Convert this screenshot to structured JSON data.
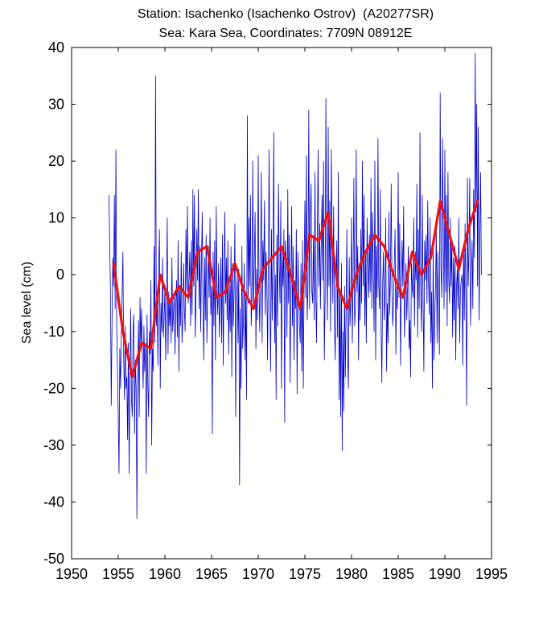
{
  "chart_data": {
    "type": "line",
    "title": "Station: Isachenko (Isachenko Ostrov)  (A20277SR)",
    "subtitle": "Sea: Kara Sea, Coordinates: 7709N 08912E",
    "xlabel": "",
    "ylabel": "Sea level (cm)",
    "xlim": [
      1950,
      1995
    ],
    "ylim": [
      -50,
      40
    ],
    "x_ticks": [
      1950,
      1955,
      1960,
      1965,
      1970,
      1975,
      1980,
      1985,
      1990,
      1995
    ],
    "y_ticks": [
      40,
      30,
      20,
      10,
      0,
      -10,
      -20,
      -30,
      -40,
      -50
    ],
    "grid": false,
    "colors": {
      "monthly": "#0000cc",
      "annual": "#ee1111"
    },
    "series": [
      {
        "key": "monthly",
        "x_start": 1954.0,
        "x_step": 0.0833333,
        "values": [
          14,
          5,
          -3,
          -23,
          -8,
          3,
          -2,
          14,
          -6,
          22,
          -9,
          -17,
          -25,
          -35,
          -13,
          -20,
          -10,
          -3,
          4,
          -15,
          -22,
          -9,
          -20,
          -18,
          -29,
          -12,
          -35,
          -18,
          -6,
          -22,
          -25,
          -10,
          -7,
          -28,
          -15,
          -20,
          -43,
          -17,
          -8,
          -25,
          -4,
          -13,
          -6,
          -14,
          -20,
          -9,
          -17,
          -12,
          -35,
          -7,
          -19,
          -25,
          -10,
          -14,
          -1,
          -30,
          -13,
          -17,
          5,
          -12,
          35,
          -9,
          -3,
          -16,
          1,
          8,
          -20,
          -5,
          -10,
          3,
          -11,
          -8,
          -2,
          -15,
          -6,
          10,
          -14,
          -3,
          -9,
          -4,
          -12,
          3,
          -10,
          -7,
          -3,
          -14,
          -5,
          -1,
          -11,
          6,
          -17,
          -2,
          -9,
          4,
          -12,
          -8,
          2,
          -6,
          -10,
          8,
          -3,
          12,
          -5,
          -1,
          4,
          -9,
          6,
          -7,
          15,
          -2,
          14,
          -11,
          -4,
          8,
          -1,
          15,
          -6,
          5,
          -10,
          2,
          11,
          -6,
          -15,
          3,
          -8,
          7,
          -12,
          -3,
          5,
          -4,
          10,
          -7,
          -2,
          -28,
          4,
          -9,
          6,
          -15,
          12,
          -3,
          -7,
          2,
          -11,
          -5,
          3,
          -12,
          7,
          -16,
          -1,
          11,
          -5,
          3,
          -8,
          6,
          -14,
          -2,
          -10,
          5,
          -18,
          2,
          -9,
          -3,
          9,
          -25,
          -4,
          0,
          -12,
          1,
          -37,
          -6,
          -20,
          5,
          -13,
          -8,
          2,
          -15,
          -4,
          -22,
          28,
          -5,
          10,
          -2,
          14,
          -9,
          -4,
          20,
          -6,
          3,
          11,
          -13,
          1,
          -8,
          21,
          -3,
          -10,
          2,
          18,
          -12,
          6,
          -1,
          13,
          -7,
          4,
          0,
          -15,
          1,
          22,
          -4,
          -17,
          8,
          -8,
          3,
          25,
          -12,
          0,
          -22,
          7,
          -9,
          16,
          2,
          -5,
          13,
          -20,
          4,
          -2,
          8,
          -26,
          6,
          3,
          -11,
          15,
          -5,
          7,
          -19,
          -3,
          12,
          -9,
          5,
          -15,
          -1,
          -6,
          8,
          -21,
          4,
          -3,
          -9,
          -12,
          2,
          -17,
          6,
          -20,
          -1,
          13,
          -4,
          21,
          -8,
          -2,
          29,
          -6,
          10,
          16,
          -3,
          -5,
          7,
          -8,
          18,
          -3,
          -12,
          6,
          22,
          -2,
          9,
          -6,
          5,
          14,
          -1,
          20,
          -15,
          -4,
          31,
          3,
          -8,
          26,
          -2,
          13,
          -10,
          22,
          7,
          -5,
          12,
          -8,
          -15,
          -2,
          6,
          -11,
          18,
          -22,
          -3,
          -25,
          2,
          -31,
          -10,
          -24,
          -2,
          -18,
          -6,
          8,
          -14,
          -20,
          3,
          -9,
          -4,
          10,
          -12,
          -1,
          17,
          -9,
          -6,
          22,
          -3,
          5,
          -15,
          2,
          -8,
          8,
          -5,
          20,
          -2,
          14,
          -9,
          4,
          -12,
          10,
          1,
          -4,
          7,
          -3,
          17,
          -6,
          11,
          0,
          -10,
          20,
          -15,
          5,
          -4,
          24,
          -2,
          -6,
          15,
          -10,
          -19,
          -2,
          4,
          -8,
          -3,
          10,
          -17,
          -5,
          -12,
          11,
          -7,
          -1,
          16,
          -3,
          -9,
          -5,
          2,
          8,
          -14,
          -2,
          -6,
          18,
          -4,
          9,
          -16,
          -3,
          6,
          -2,
          12,
          -11,
          -5,
          2,
          -8,
          -3,
          5,
          -13,
          -8,
          -18,
          2,
          -2,
          -4,
          10,
          -9,
          4,
          -1,
          16,
          -11,
          8,
          -6,
          25,
          -3,
          -10,
          14,
          -4,
          -17,
          6,
          -1,
          7,
          -5,
          13,
          -1,
          -7,
          10,
          -12,
          -3,
          -20,
          5,
          -15,
          -8,
          -2,
          8,
          -12,
          4,
          -6,
          -14,
          32,
          1,
          -4,
          24,
          8,
          -6,
          22,
          -3,
          14,
          -9,
          18,
          -1,
          -5,
          10,
          -2,
          6,
          -11,
          3,
          -8,
          5,
          -15,
          -2,
          1,
          -6,
          10,
          -12,
          -3,
          -1,
          0,
          -16,
          5,
          -8,
          9,
          -4,
          -23,
          17,
          -2,
          4,
          17,
          -9,
          -1,
          6,
          -6,
          15,
          3,
          39,
          11,
          30,
          -2,
          26,
          -8,
          6,
          18,
          0
        ]
      },
      {
        "key": "annual",
        "x": [
          1954.5,
          1955.5,
          1956.5,
          1957.5,
          1958.5,
          1959.5,
          1960.5,
          1961.5,
          1962.5,
          1963.5,
          1964.5,
          1965.5,
          1966.5,
          1967.5,
          1968.5,
          1969.5,
          1970.5,
          1971.5,
          1972.5,
          1973.5,
          1974.5,
          1975.5,
          1976.5,
          1977.5,
          1978.5,
          1979.5,
          1980.5,
          1981.5,
          1982.5,
          1983.5,
          1984.5,
          1985.5,
          1986.5,
          1987.5,
          1988.5,
          1989.5,
          1990.5,
          1991.5,
          1992.5,
          1993.5
        ],
        "values": [
          2,
          -10,
          -18,
          -12,
          -13,
          0,
          -5,
          -2,
          -4,
          4,
          5,
          -4,
          -3,
          2,
          -3,
          -6,
          1,
          3,
          5,
          0,
          -6,
          7,
          6,
          11,
          -2,
          -6,
          0,
          4,
          7,
          5,
          0,
          -4,
          4,
          0,
          3,
          13,
          7,
          1,
          8,
          13
        ]
      }
    ]
  }
}
